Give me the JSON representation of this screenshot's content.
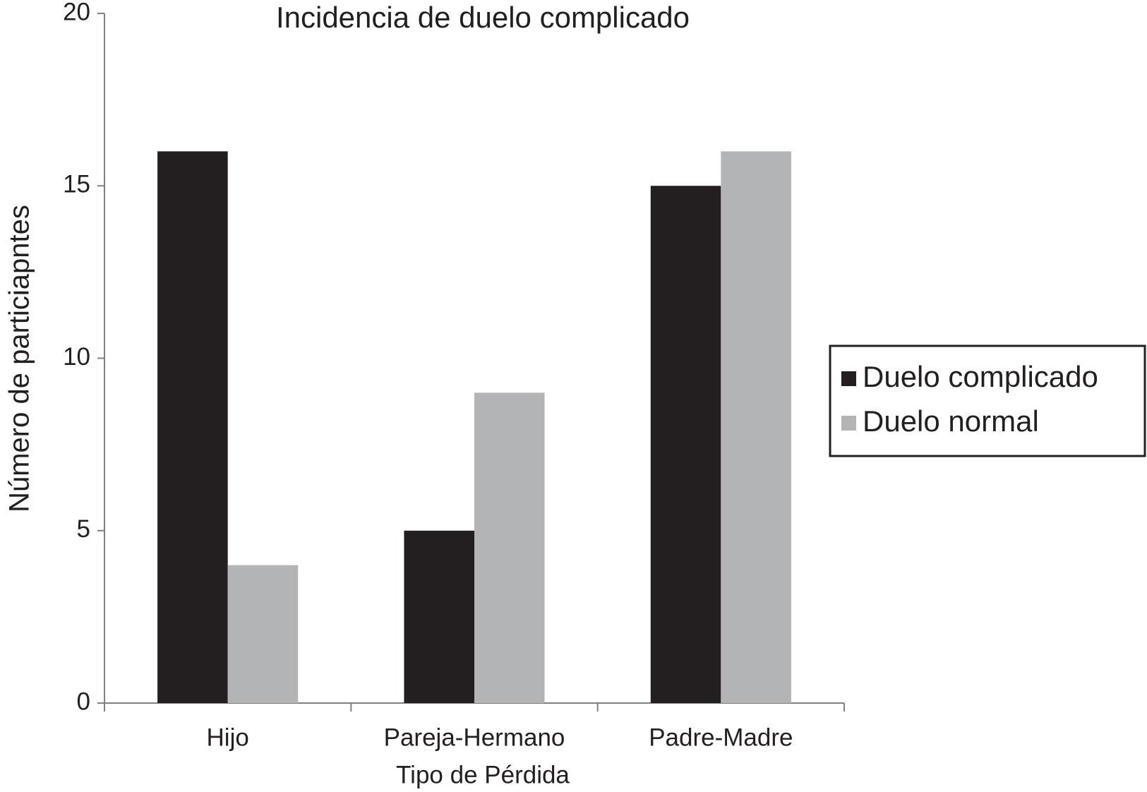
{
  "chart_data": {
    "type": "bar",
    "title": "Incidencia de duelo complicado",
    "x_label": "Tipo de Pérdida",
    "y_label": "Número de particiapntes",
    "categories": [
      "Hijo",
      "Pareja-Hermano",
      "Padre-Madre"
    ],
    "series": [
      {
        "name": "Duelo complicado",
        "color": "#231f20",
        "values": [
          16,
          5,
          15
        ]
      },
      {
        "name": "Duelo normal",
        "color": "#b3b4b6",
        "values": [
          4,
          9,
          16
        ]
      }
    ],
    "ylim": [
      0,
      20
    ],
    "yticks": [
      0,
      5,
      10,
      15,
      20
    ],
    "grid": false,
    "legend": "right"
  }
}
